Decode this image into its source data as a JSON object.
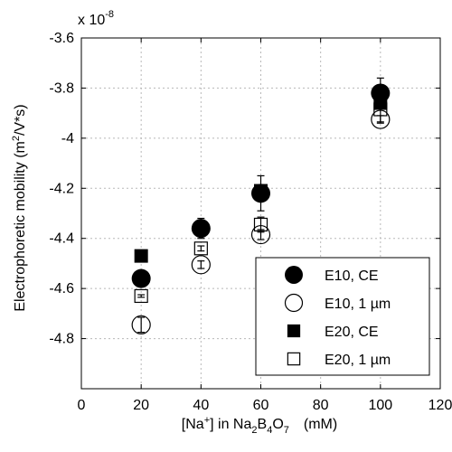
{
  "chart_data": {
    "type": "scatter",
    "scale_label": {
      "base": "x 10",
      "exponent": "-8"
    },
    "xlabel": {
      "pre": "[Na",
      "sup": "+",
      "mid": "] in Na",
      "sub1": "2",
      "b": "B",
      "sub2": "4",
      "o": "O",
      "sub3": "7",
      "unit": "(mM)"
    },
    "ylabel": {
      "pre": "Electrophoretic mobility (m",
      "sup": "2",
      "post": "/V*s)"
    },
    "xlim": [
      0,
      120
    ],
    "ylim": [
      -5.0,
      -3.6
    ],
    "xticks": [
      0,
      20,
      40,
      60,
      80,
      100,
      120
    ],
    "xtick_labels": [
      "0",
      "20",
      "40",
      "60",
      "80",
      "100",
      "120"
    ],
    "yticks": [
      -3.6,
      -3.8,
      -4.0,
      -4.2,
      -4.4,
      -4.6,
      -4.8
    ],
    "ytick_labels": [
      "-3.6",
      "-3.8",
      "-4",
      "-4.2",
      "-4.4",
      "-4.6",
      "-4.8"
    ],
    "grid": true,
    "legend_position": "bottom-right",
    "series": [
      {
        "name": "E10, CE",
        "marker": "filled-circle",
        "x": [
          20,
          40,
          60,
          100
        ],
        "y": [
          -4.56,
          -4.36,
          -4.22,
          -3.82
        ],
        "err": [
          0.01,
          0.04,
          0.07,
          0.06
        ]
      },
      {
        "name": "E10, 1 µm",
        "marker": "open-circle",
        "x": [
          20,
          40,
          60,
          100
        ],
        "y": [
          -4.745,
          -4.505,
          -4.385,
          -3.925
        ],
        "err": [
          0.03,
          0.015,
          0.02,
          0.015
        ]
      },
      {
        "name": "E20, CE",
        "marker": "filled-square",
        "x": [
          20,
          40,
          60,
          100
        ],
        "y": [
          -4.47,
          -4.36,
          -4.21,
          -3.86
        ],
        "err": [
          0.005,
          0.005,
          0.005,
          0.005
        ]
      },
      {
        "name": "E20, 1 µm",
        "marker": "open-square",
        "x": [
          20,
          40,
          60,
          100
        ],
        "y": [
          -4.63,
          -4.44,
          -4.345,
          -3.885
        ],
        "err": [
          0.005,
          0.01,
          0.03,
          0.05
        ]
      }
    ]
  }
}
